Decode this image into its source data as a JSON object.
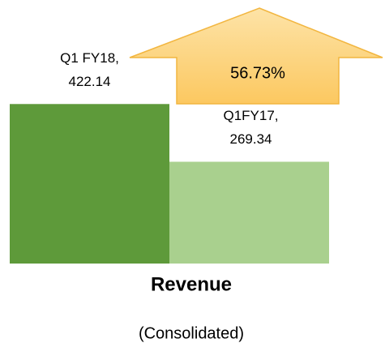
{
  "chart_data": {
    "type": "bar",
    "title": "Revenue",
    "subtitle": "(Consolidated)",
    "annotation": "56.73%",
    "categories": [
      "Q1 FY18,",
      "Q1FY17,"
    ],
    "values": [
      422.14,
      269.34
    ],
    "colors": [
      "#5e9a3a",
      "#a9d08e"
    ]
  }
}
